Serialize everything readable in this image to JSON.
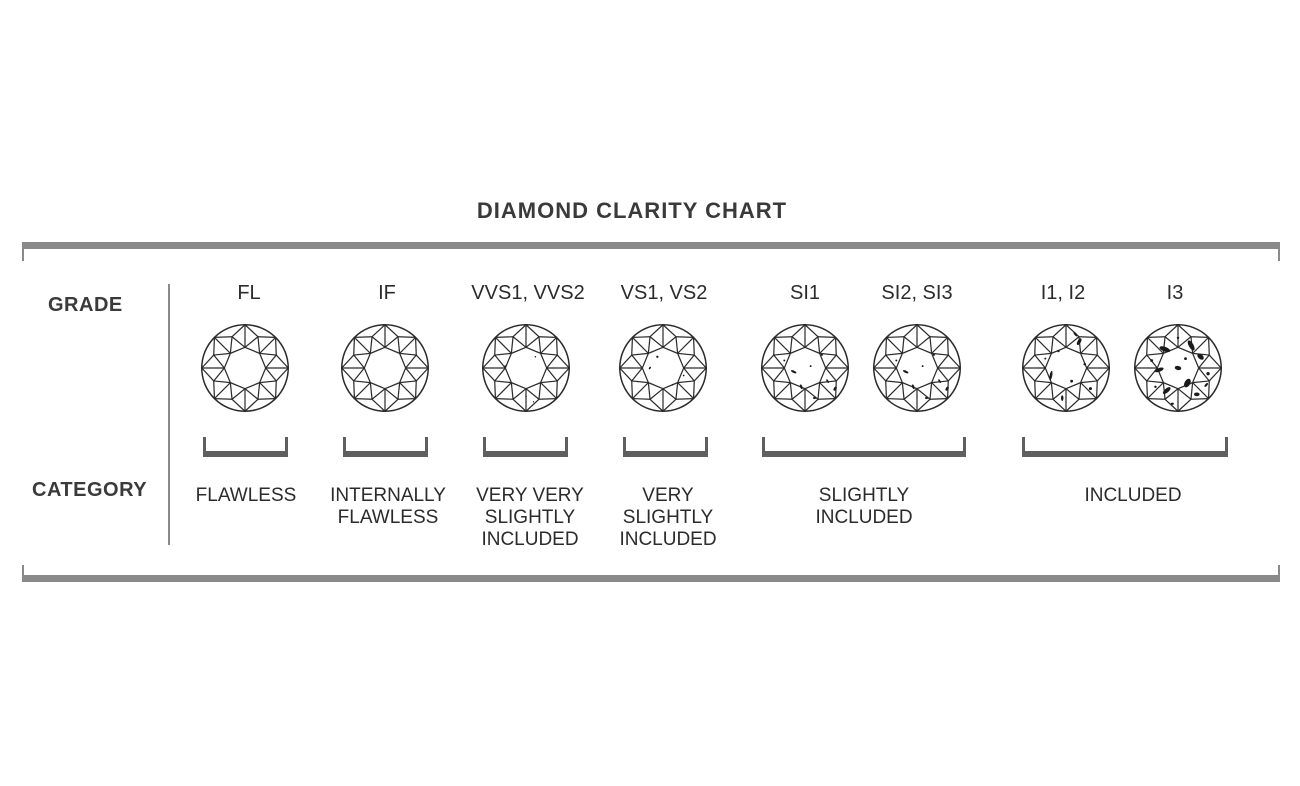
{
  "title": "DIAMOND CLARITY CHART",
  "row_labels": {
    "grade": "GRADE",
    "category": "CATEGORY"
  },
  "grades": [
    {
      "label": "FL",
      "inclusions": "none"
    },
    {
      "label": "IF",
      "inclusions": "none"
    },
    {
      "label": "VVS1, VVS2",
      "inclusions": "minute"
    },
    {
      "label": "VS1, VS2",
      "inclusions": "minor"
    },
    {
      "label": "SI1",
      "inclusions": "noticeable"
    },
    {
      "label": "SI2, SI3",
      "inclusions": "noticeable"
    },
    {
      "label": "I1, I2",
      "inclusions": "obvious"
    },
    {
      "label": "I3",
      "inclusions": "heavy"
    }
  ],
  "categories": [
    {
      "lines": [
        "FLAWLESS"
      ]
    },
    {
      "lines": [
        "INTERNALLY",
        "FLAWLESS"
      ]
    },
    {
      "lines": [
        "VERY VERY",
        "SLIGHTLY",
        "INCLUDED"
      ]
    },
    {
      "lines": [
        "VERY",
        "SLIGHTLY",
        "INCLUDED"
      ]
    },
    {
      "lines": [
        "SLIGHTLY",
        "INCLUDED"
      ]
    },
    {
      "lines": [
        "INCLUDED"
      ]
    }
  ],
  "colors": {
    "frame": "#8a8a8a",
    "bracket": "#5f5f5f",
    "outline": "#2b2b2b",
    "inclusion": "#1a1a1a"
  },
  "icons": {
    "diamond": "round-brilliant-diamond-icon"
  }
}
